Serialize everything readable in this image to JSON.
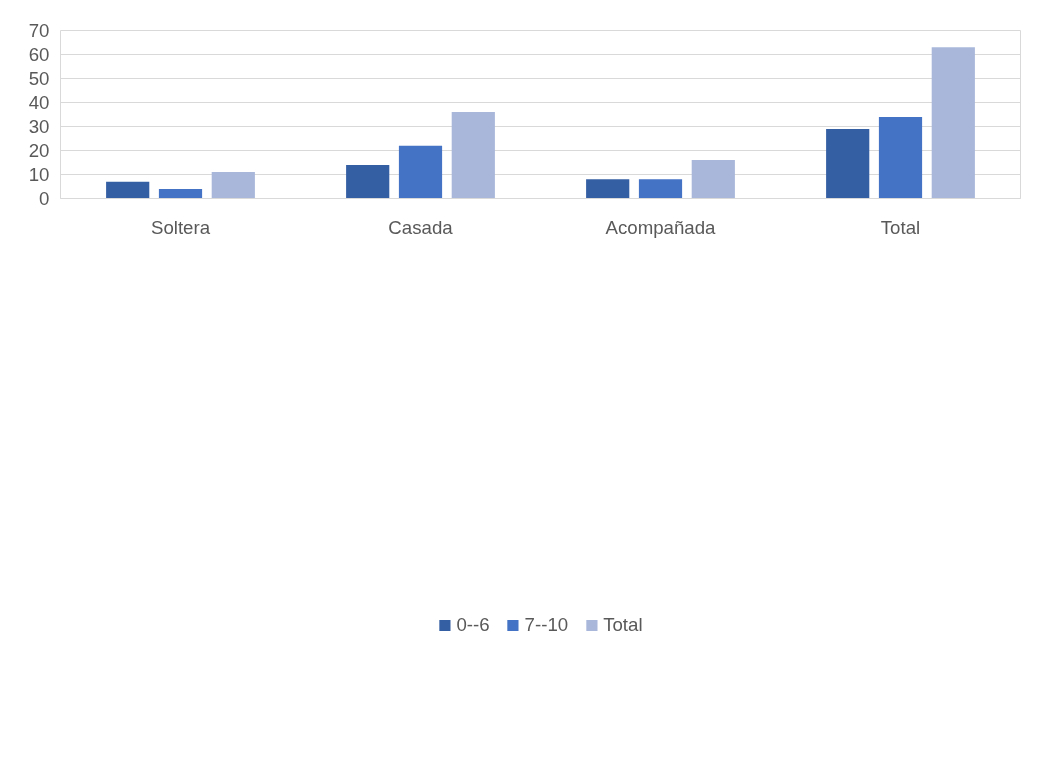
{
  "chart_data": {
    "type": "bar",
    "categories": [
      "Soltera",
      "Casada",
      "Acompañada",
      "Total"
    ],
    "series": [
      {
        "name": "0--6",
        "color": "#355fa3",
        "values": [
          7,
          14,
          8,
          29
        ]
      },
      {
        "name": "7--10",
        "color": "#4472c4",
        "values": [
          4,
          22,
          8,
          34
        ]
      },
      {
        "name": "Total",
        "color": "#a9b7db",
        "values": [
          11,
          36,
          16,
          63
        ]
      }
    ],
    "ylim": [
      0,
      70
    ],
    "yticks": [
      0,
      10,
      20,
      30,
      40,
      50,
      60,
      70
    ],
    "grid": "y",
    "legend": "bottom"
  }
}
